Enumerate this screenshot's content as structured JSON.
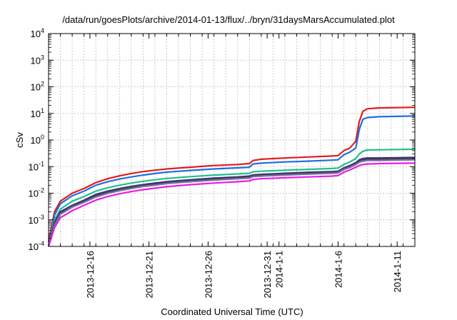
{
  "chart_data": {
    "type": "line",
    "title": "/data/run/goesPlots/archive/2014-01-13/flux/../bryn/31daysMarsAccumulated.plot",
    "xlabel": "Coordinated Universal Time (UTC)",
    "ylabel": "cSv",
    "yscale": "log",
    "ylim": [
      0.0001,
      10000
    ],
    "xlim": [
      "2013-12-13",
      "2014-01-13"
    ],
    "y_tick_labels": [
      {
        "base": "10",
        "exp": "-4"
      },
      {
        "base": "10",
        "exp": "-3"
      },
      {
        "base": "10",
        "exp": "-2"
      },
      {
        "base": "10",
        "exp": "-1"
      },
      {
        "base": "10",
        "exp": "0"
      },
      {
        "base": "10",
        "exp": "1"
      },
      {
        "base": "10",
        "exp": "2"
      },
      {
        "base": "10",
        "exp": "3"
      },
      {
        "base": "10",
        "exp": "4"
      }
    ],
    "x_ticks": [
      {
        "day": 3.5,
        "label": "2013-12-16"
      },
      {
        "day": 8.5,
        "label": "2013-12-21"
      },
      {
        "day": 13.5,
        "label": "2013-12-26"
      },
      {
        "day": 18.5,
        "label": "2013-12-31"
      },
      {
        "day": 19.5,
        "label": "2014-1-1"
      },
      {
        "day": 24.5,
        "label": "2014-1-6"
      },
      {
        "day": 29.5,
        "label": "2014-1-11"
      }
    ],
    "grid": true,
    "series": [
      {
        "color": "#e41a1c",
        "x": [
          0,
          0.5,
          1,
          2,
          3,
          4,
          5,
          6,
          7,
          8,
          9,
          10,
          12,
          14,
          16,
          17,
          17.3,
          18,
          20,
          22,
          24,
          24.5,
          25,
          25.5,
          26,
          26.3,
          26.6,
          27,
          28,
          31
        ],
        "y": [
          0.00015,
          0.002,
          0.005,
          0.01,
          0.015,
          0.025,
          0.035,
          0.045,
          0.055,
          0.065,
          0.073,
          0.082,
          0.095,
          0.11,
          0.12,
          0.13,
          0.17,
          0.19,
          0.21,
          0.23,
          0.25,
          0.26,
          0.4,
          0.5,
          0.9,
          5,
          12,
          15,
          16,
          17
        ]
      },
      {
        "color": "#1f6fdf",
        "x": [
          0,
          0.5,
          1,
          2,
          3,
          4,
          5,
          6,
          7,
          8,
          9,
          10,
          12,
          14,
          16,
          17,
          17.3,
          18,
          20,
          22,
          24,
          24.5,
          25,
          25.5,
          26,
          26.3,
          26.6,
          27,
          28,
          31
        ],
        "y": [
          0.0001,
          0.0015,
          0.004,
          0.008,
          0.012,
          0.02,
          0.027,
          0.034,
          0.041,
          0.048,
          0.055,
          0.062,
          0.072,
          0.082,
          0.09,
          0.095,
          0.125,
          0.135,
          0.15,
          0.16,
          0.175,
          0.18,
          0.28,
          0.35,
          0.5,
          2.5,
          6,
          7,
          7.5,
          8
        ]
      },
      {
        "color": "#1ec08c",
        "x": [
          0,
          0.5,
          1,
          2,
          3,
          4,
          5,
          6,
          7,
          8,
          9,
          10,
          12,
          14,
          16,
          17,
          17.3,
          18,
          20,
          22,
          24,
          24.5,
          25,
          25.5,
          26,
          26.3,
          26.6,
          27,
          28,
          31
        ],
        "y": [
          0.0001,
          0.001,
          0.0025,
          0.005,
          0.0075,
          0.012,
          0.016,
          0.02,
          0.024,
          0.028,
          0.032,
          0.036,
          0.042,
          0.048,
          0.053,
          0.056,
          0.064,
          0.067,
          0.073,
          0.079,
          0.085,
          0.088,
          0.12,
          0.15,
          0.2,
          0.3,
          0.38,
          0.42,
          0.43,
          0.45
        ]
      },
      {
        "color": "#3a2a8c",
        "x": [
          0,
          0.5,
          1,
          2,
          3,
          4,
          5,
          6,
          7,
          8,
          9,
          10,
          12,
          14,
          16,
          17,
          17.3,
          18,
          20,
          22,
          24,
          24.5,
          25,
          25.5,
          26,
          26.3,
          26.6,
          27,
          28,
          31
        ],
        "y": [
          0.0001,
          0.0008,
          0.002,
          0.0035,
          0.0055,
          0.009,
          0.012,
          0.015,
          0.018,
          0.021,
          0.024,
          0.027,
          0.032,
          0.037,
          0.041,
          0.044,
          0.049,
          0.051,
          0.056,
          0.061,
          0.065,
          0.067,
          0.09,
          0.11,
          0.14,
          0.18,
          0.2,
          0.21,
          0.21,
          0.22
        ]
      },
      {
        "color": "#444444",
        "x": [
          0,
          0.5,
          1,
          2,
          3,
          4,
          5,
          6,
          7,
          8,
          9,
          10,
          12,
          14,
          16,
          17,
          17.3,
          18,
          20,
          22,
          24,
          24.5,
          25,
          25.5,
          26,
          26.3,
          26.6,
          27,
          28,
          31
        ],
        "y": [
          0.0001,
          0.0007,
          0.0018,
          0.0032,
          0.005,
          0.008,
          0.011,
          0.014,
          0.017,
          0.02,
          0.022,
          0.025,
          0.03,
          0.034,
          0.038,
          0.041,
          0.046,
          0.048,
          0.052,
          0.057,
          0.061,
          0.063,
          0.085,
          0.1,
          0.13,
          0.16,
          0.18,
          0.19,
          0.19,
          0.2
        ]
      },
      {
        "color": "#7a6faa",
        "x": [
          0,
          0.5,
          1,
          2,
          3,
          4,
          5,
          6,
          7,
          8,
          9,
          10,
          12,
          14,
          16,
          17,
          17.3,
          18,
          20,
          22,
          24,
          24.5,
          25,
          25.5,
          26,
          26.3,
          26.6,
          27,
          28,
          31
        ],
        "y": [
          0.0001,
          0.0006,
          0.0016,
          0.003,
          0.0045,
          0.0072,
          0.0098,
          0.0125,
          0.015,
          0.018,
          0.02,
          0.023,
          0.027,
          0.031,
          0.035,
          0.037,
          0.042,
          0.044,
          0.048,
          0.052,
          0.056,
          0.058,
          0.078,
          0.093,
          0.12,
          0.145,
          0.16,
          0.17,
          0.17,
          0.18
        ]
      },
      {
        "color": "#e61ee6",
        "x": [
          0,
          0.5,
          1,
          2,
          3,
          4,
          5,
          6,
          7,
          8,
          9,
          10,
          12,
          14,
          16,
          17,
          17.3,
          18,
          20,
          22,
          24,
          24.5,
          25,
          25.5,
          26,
          26.3,
          26.6,
          27,
          28,
          31
        ],
        "y": [
          0.0001,
          0.0005,
          0.0012,
          0.0022,
          0.0035,
          0.0055,
          0.0075,
          0.0095,
          0.0115,
          0.0135,
          0.0155,
          0.0175,
          0.021,
          0.024,
          0.027,
          0.029,
          0.033,
          0.035,
          0.038,
          0.041,
          0.044,
          0.046,
          0.062,
          0.075,
          0.095,
          0.11,
          0.12,
          0.125,
          0.13,
          0.135
        ]
      }
    ]
  }
}
